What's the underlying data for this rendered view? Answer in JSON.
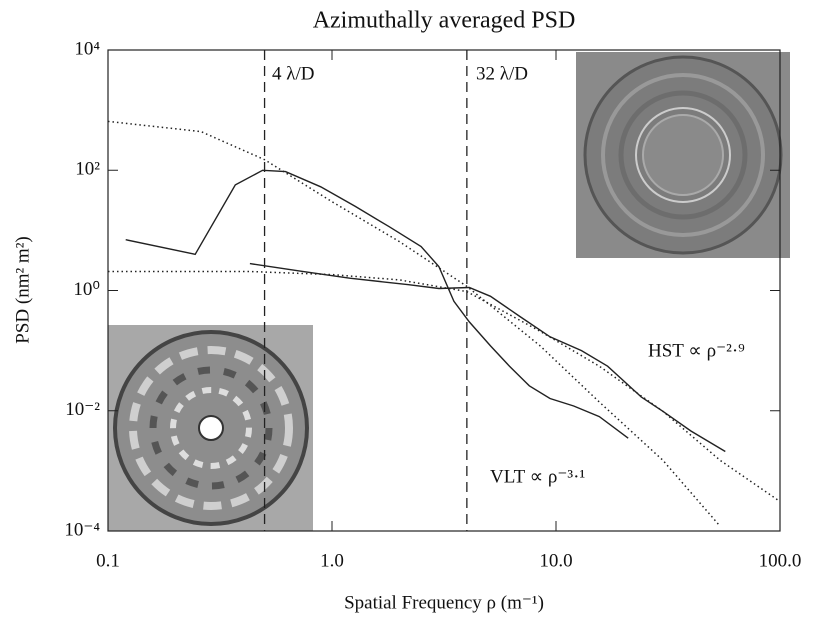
{
  "chart_data": {
    "type": "line",
    "title": "Azimuthally averaged PSD",
    "xlabel": "Spatial Frequency ρ (m⁻¹)",
    "ylabel": "PSD (nm² m²)",
    "log_x": true,
    "log_y": true,
    "xlim": [
      0.1,
      100
    ],
    "ylim": [
      0.0001,
      10000
    ],
    "xticks": [
      0.1,
      {
        "value": 1,
        "label": "1.0"
      },
      {
        "value": 10,
        "label": "10.0"
      },
      {
        "value": 100,
        "label": "100.0"
      }
    ],
    "yticks": [
      {
        "value": 0.0001,
        "label": "10⁻⁴"
      },
      {
        "value": 0.01,
        "label": "10⁻²"
      },
      {
        "value": 1,
        "label": "10⁰"
      },
      {
        "value": 100,
        "label": "10²"
      },
      {
        "value": 10000,
        "label": "10⁴"
      }
    ],
    "vlines": [
      0.5,
      4
    ],
    "annotations": [
      "4 λ/D",
      "32 λ/D",
      "HST ∝ ρ⁻²·⁹",
      "VLT ∝ ρ⁻³·¹"
    ],
    "series": [
      {
        "color": "#222222",
        "dash": "solid",
        "x": [
          0.12,
          0.245,
          0.37,
          0.49,
          0.62,
          0.89,
          1.27,
          1.8,
          2.5,
          3.0,
          3.5,
          4.1,
          5.1,
          6.2,
          7.6,
          9.4,
          12,
          15.6,
          21
        ],
        "values": [
          7,
          4,
          57,
          100,
          95,
          53,
          25,
          11.5,
          5.4,
          2.5,
          0.66,
          0.3,
          0.12,
          0.055,
          0.026,
          0.016,
          0.012,
          0.008,
          0.0035
        ]
      },
      {
        "color": "#222222",
        "dash": "solid",
        "x": [
          0.43,
          0.72,
          1.2,
          2.2,
          3.0,
          4.1,
          5.1,
          6.9,
          9.4,
          13,
          17,
          24,
          30,
          40,
          57
        ],
        "values": [
          2.8,
          2.1,
          1.6,
          1.25,
          1.08,
          1.12,
          0.8,
          0.37,
          0.17,
          0.1,
          0.055,
          0.017,
          0.0098,
          0.0046,
          0.0021
        ]
      },
      {
        "color": "#222222",
        "dash": "dotted",
        "x": [
          0.1,
          0.26,
          0.5,
          1,
          2,
          4,
          8.5,
          15.6,
          30,
          54
        ],
        "values": [
          650,
          440,
          150,
          30,
          6.5,
          1.17,
          0.12,
          0.014,
          0.0015,
          0.00012
        ]
      },
      {
        "color": "#222222",
        "dash": "dotted",
        "x": [
          0.1,
          0.43,
          1,
          2,
          4,
          8.5,
          15.6,
          30,
          54,
          100
        ],
        "values": [
          2.07,
          2.07,
          1.84,
          1.5,
          0.96,
          0.21,
          0.055,
          0.0098,
          0.0015,
          0.00031
        ]
      }
    ]
  }
}
